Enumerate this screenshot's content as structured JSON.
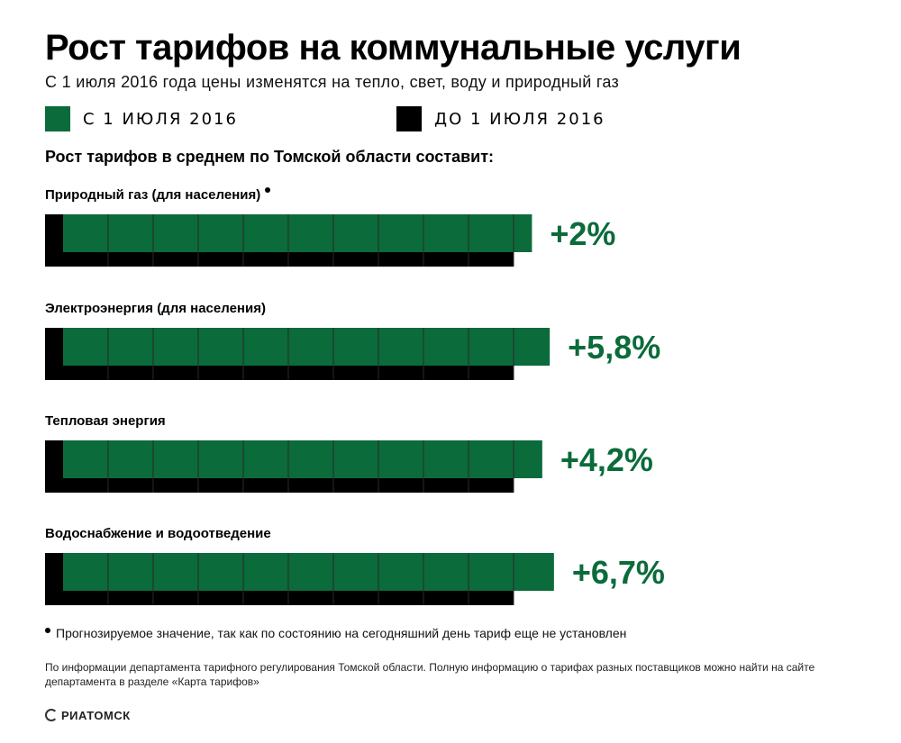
{
  "header": {
    "title": "Рост тарифов на коммунальные услуги",
    "subtitle": "С 1 июля 2016 года цены изменятся на тепло, свет, воду и природный газ"
  },
  "legend": [
    {
      "label": "С 1 ИЮЛЯ 2016",
      "color": "#0b6b3b"
    },
    {
      "label": "ДО 1 ИЮЛЯ 2016",
      "color": "#000000"
    }
  ],
  "section_heading": "Рост тарифов в среднем по Томской области составит:",
  "footnote": "Прогнозируемое значение, так как по состоянию на сегодняшний день тариф еще не установлен",
  "source": "По информации департамента тарифного регулирования Томской области. Полную информацию о тарифах разных поставщиков можно найти на сайте департамента в разделе «Карта тарифов»",
  "logo": "РИАТОМСК",
  "colors": {
    "new": "#0b6b3b",
    "old": "#000000",
    "grid": "#2a2a2a",
    "value_text": "#0b6b3b"
  },
  "chart_data": {
    "type": "bar",
    "orientation": "horizontal",
    "baseline": 100,
    "series": [
      {
        "name": "С 1 ИЮЛЯ 2016",
        "values": [
          102,
          105.8,
          104.2,
          106.7
        ]
      },
      {
        "name": "ДО 1 ИЮЛЯ 2016",
        "values": [
          100,
          100,
          100,
          100
        ]
      }
    ],
    "categories": [
      "Природный газ (для населения)",
      "Электроэнергия (для населения)",
      "Тепловая энергия",
      "Водоснабжение и водоотведение"
    ],
    "forecast": [
      true,
      false,
      false,
      false
    ],
    "data_labels": [
      "+2%",
      "+5,8%",
      "+4,2%",
      "+6,7%"
    ],
    "grid": true
  }
}
